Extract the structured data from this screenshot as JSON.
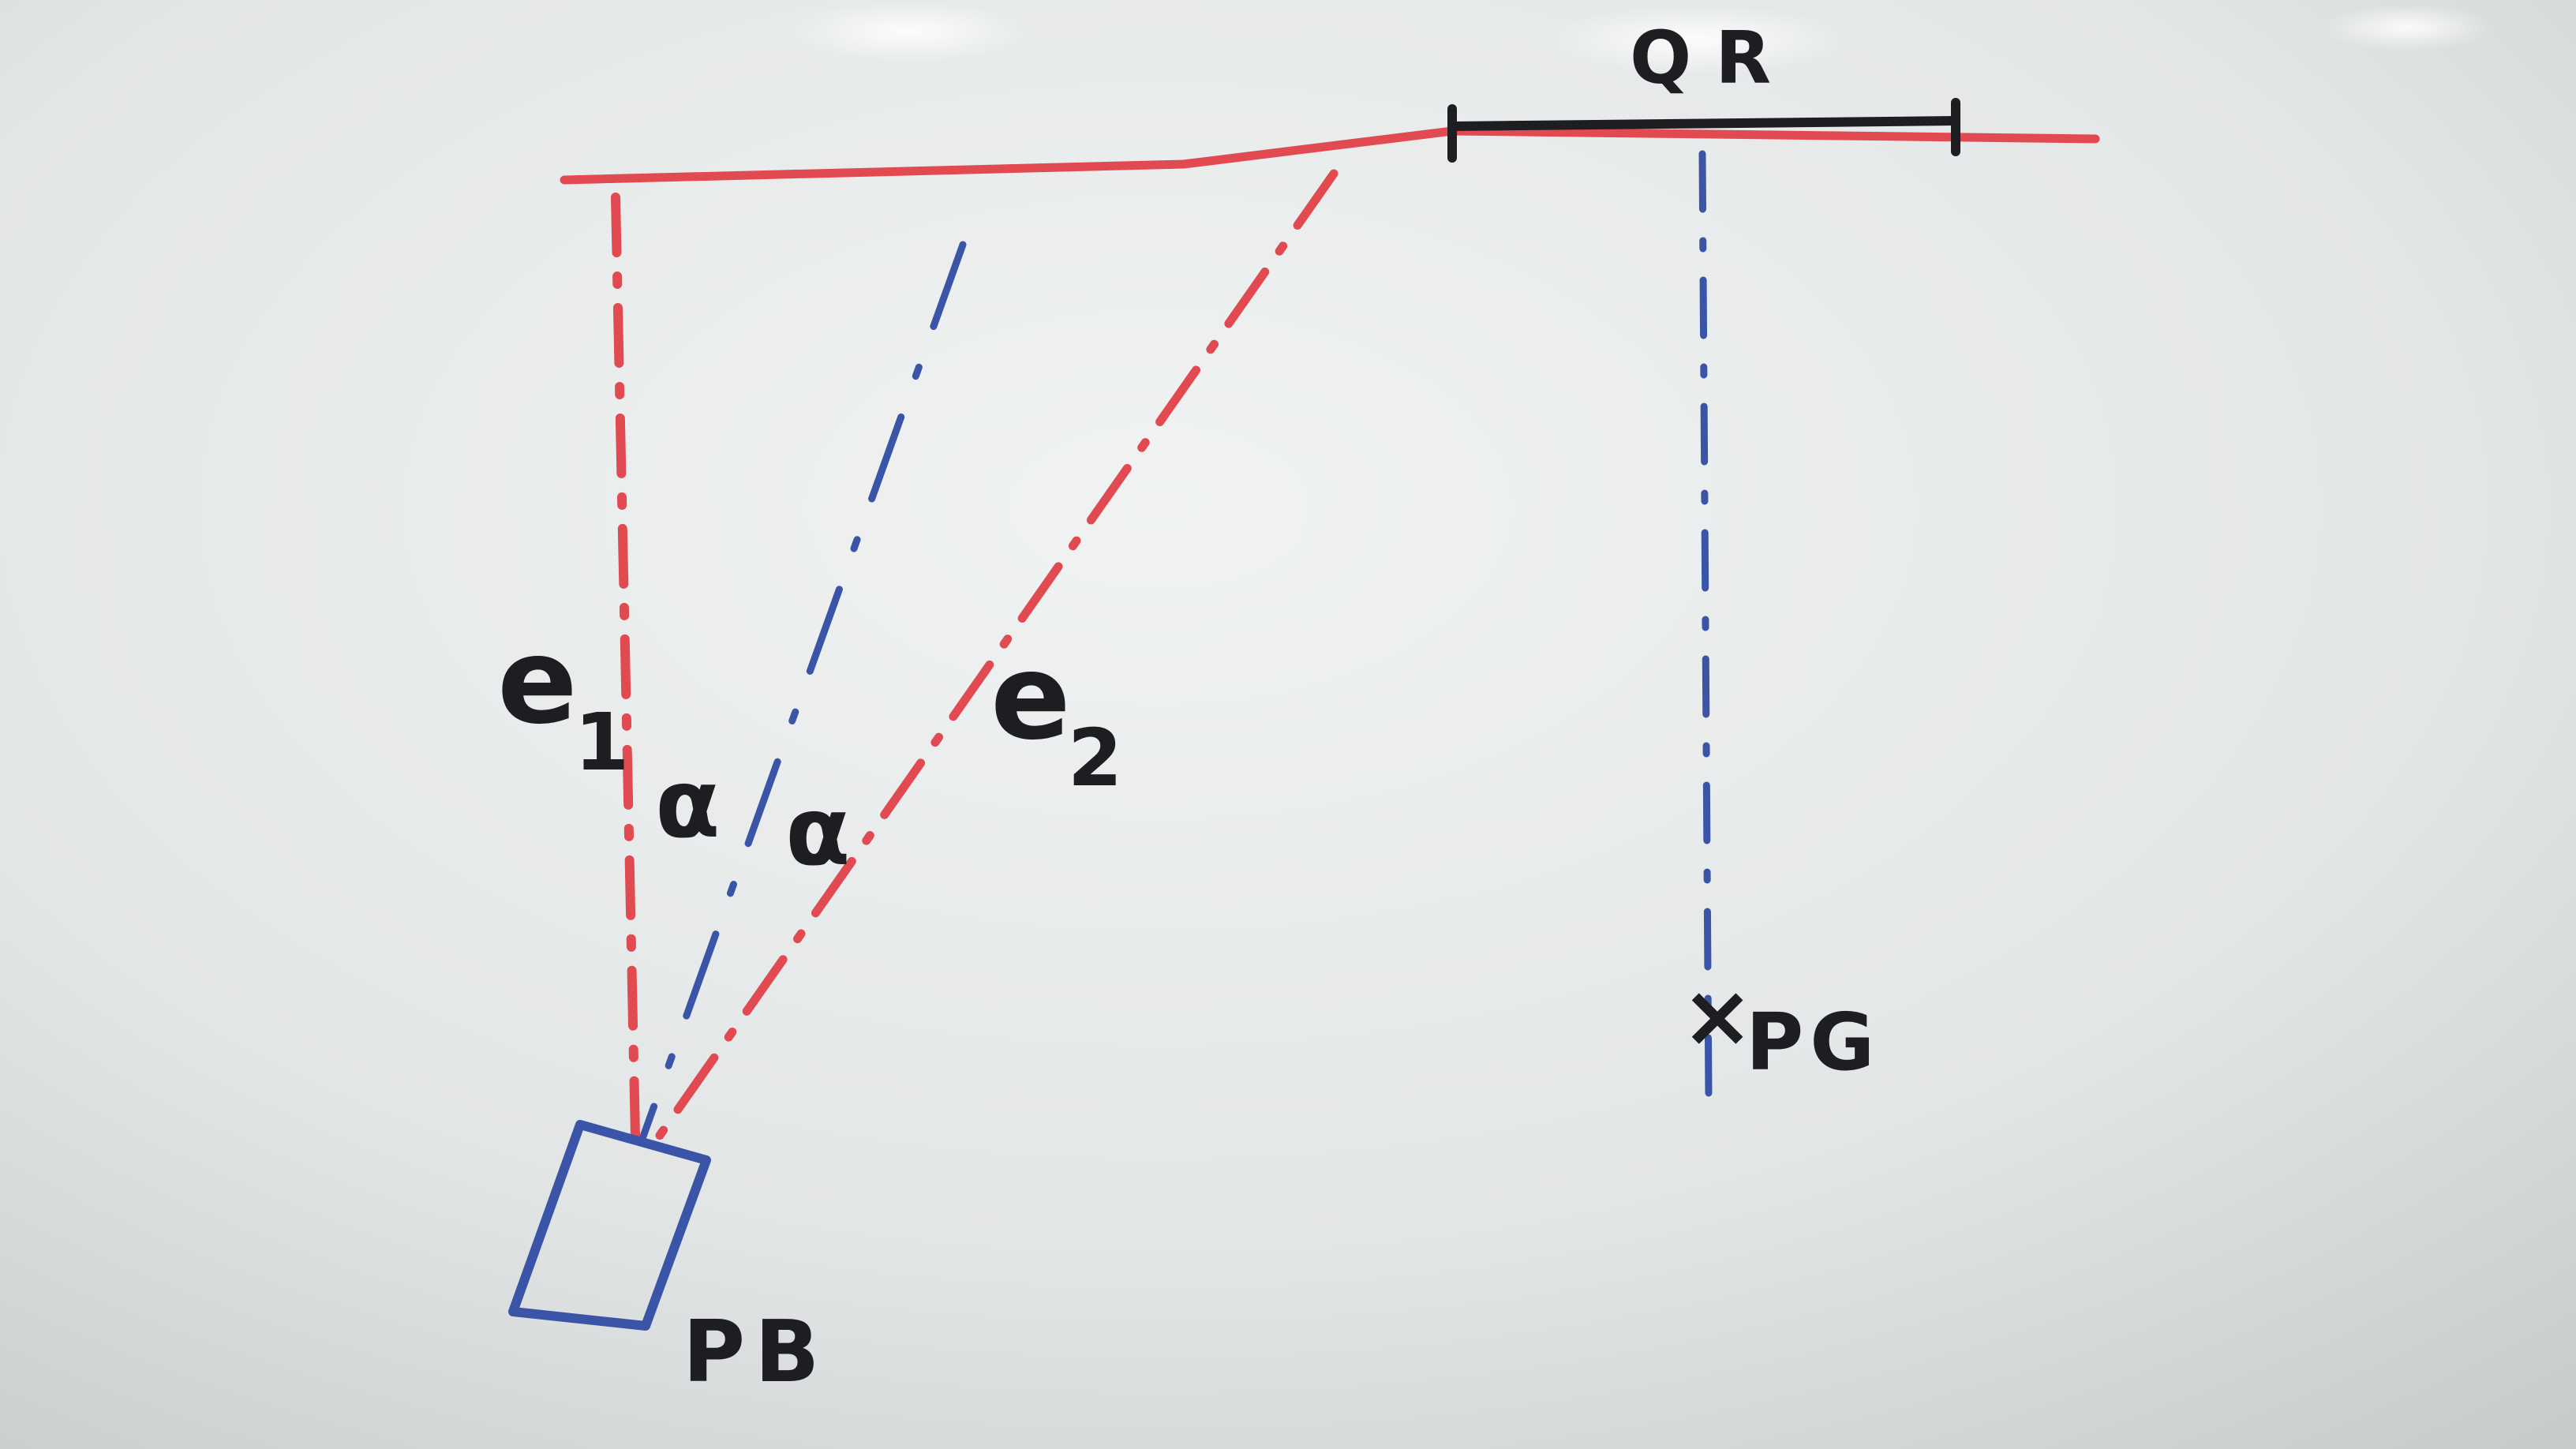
{
  "labels": {
    "qr": "QR",
    "e1": "e1",
    "e2": "e2",
    "alpha_left": "α",
    "alpha_right": "α",
    "pg": "PG",
    "pg_marker": "×",
    "pb": "PB"
  },
  "colors": {
    "board_light": "#eef0f0",
    "board_dark": "#c9cccd",
    "red_marker": "#e04a50",
    "blue_marker": "#3a55a8",
    "black_marker": "#1e1e22"
  }
}
